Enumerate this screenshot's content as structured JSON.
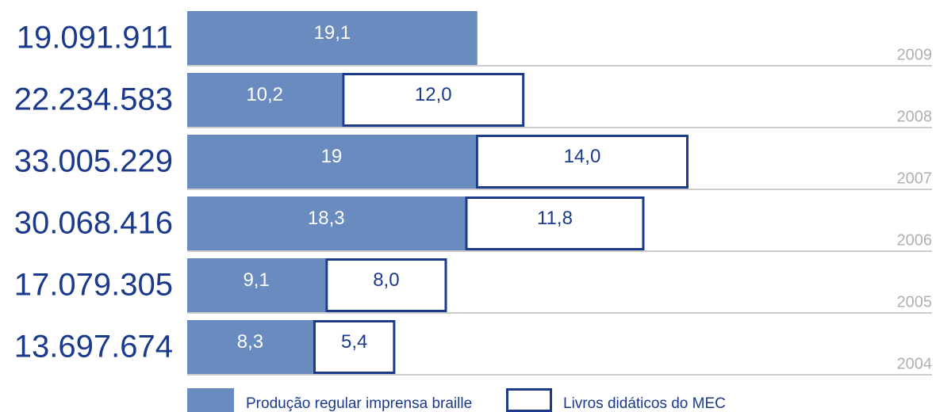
{
  "chart_data": {
    "type": "bar",
    "orientation": "horizontal",
    "stacked": true,
    "categories": [
      "2009",
      "2008",
      "2007",
      "2006",
      "2005",
      "2004"
    ],
    "row_labels": [
      "19.091.911",
      "22.234.583",
      "33.005.229",
      "30.068.416",
      "17.079.305",
      "13.697.674"
    ],
    "series": [
      {
        "name": "Produção regular imprensa braille",
        "color": "#6a8bbf",
        "values": [
          19.1,
          10.2,
          19,
          18.3,
          9.1,
          8.3
        ],
        "value_labels": [
          "19,1",
          "10,2",
          "19",
          "18,3",
          "9,1",
          "8,3"
        ]
      },
      {
        "name": "Livros didáticos do MEC",
        "color": "#1b3a8c",
        "values": [
          null,
          12.0,
          14.0,
          11.8,
          8.0,
          5.4
        ],
        "value_labels": [
          null,
          "12,0",
          "14,0",
          "11,8",
          "8,0",
          "5,4"
        ]
      }
    ]
  }
}
